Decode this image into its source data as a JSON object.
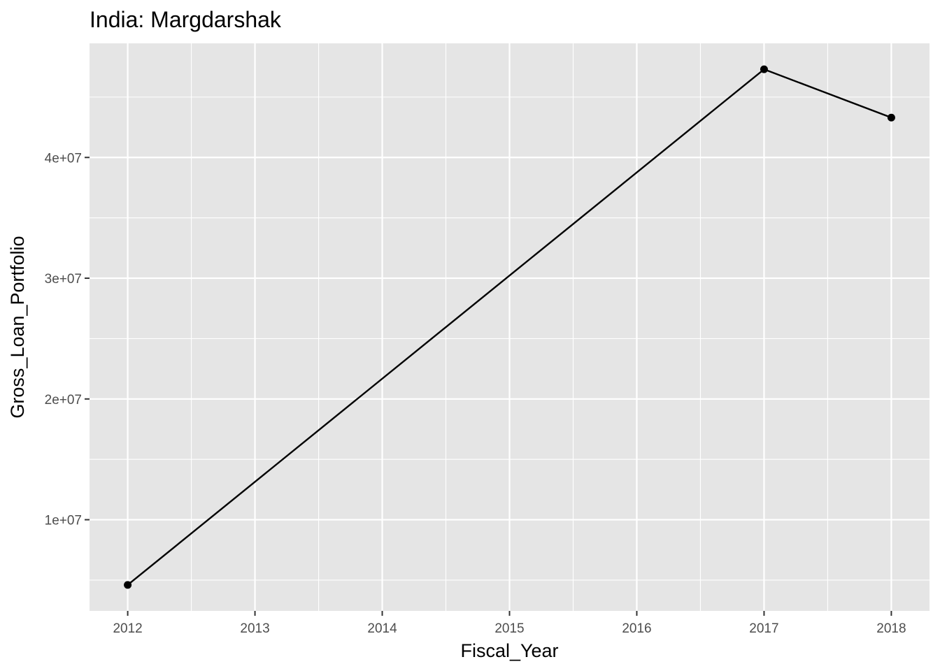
{
  "chart_data": {
    "type": "line",
    "title": "India:  Margdarshak",
    "xlabel": "Fiscal_Year",
    "ylabel": "Gross_Loan_Portfolio",
    "x": [
      2012,
      2017,
      2018
    ],
    "series": [
      {
        "values": [
          4600000,
          47300000,
          43300000
        ]
      }
    ],
    "x_ticks": [
      2012,
      2013,
      2014,
      2015,
      2016,
      2017,
      2018
    ],
    "x_tick_labels": [
      "2012",
      "2013",
      "2014",
      "2015",
      "2016",
      "2017",
      "2018"
    ],
    "y_ticks": [
      10000000,
      20000000,
      30000000,
      40000000
    ],
    "y_tick_labels": [
      "1e+07",
      "2e+07",
      "3e+07",
      "4e+07"
    ],
    "xlim": [
      2011.7,
      2018.3
    ],
    "ylim": [
      2450000,
      49450000
    ],
    "grid": true,
    "colors": {
      "panel": "#e5e5e5",
      "grid": "#ffffff",
      "line": "#000000",
      "point": "#000000"
    }
  }
}
